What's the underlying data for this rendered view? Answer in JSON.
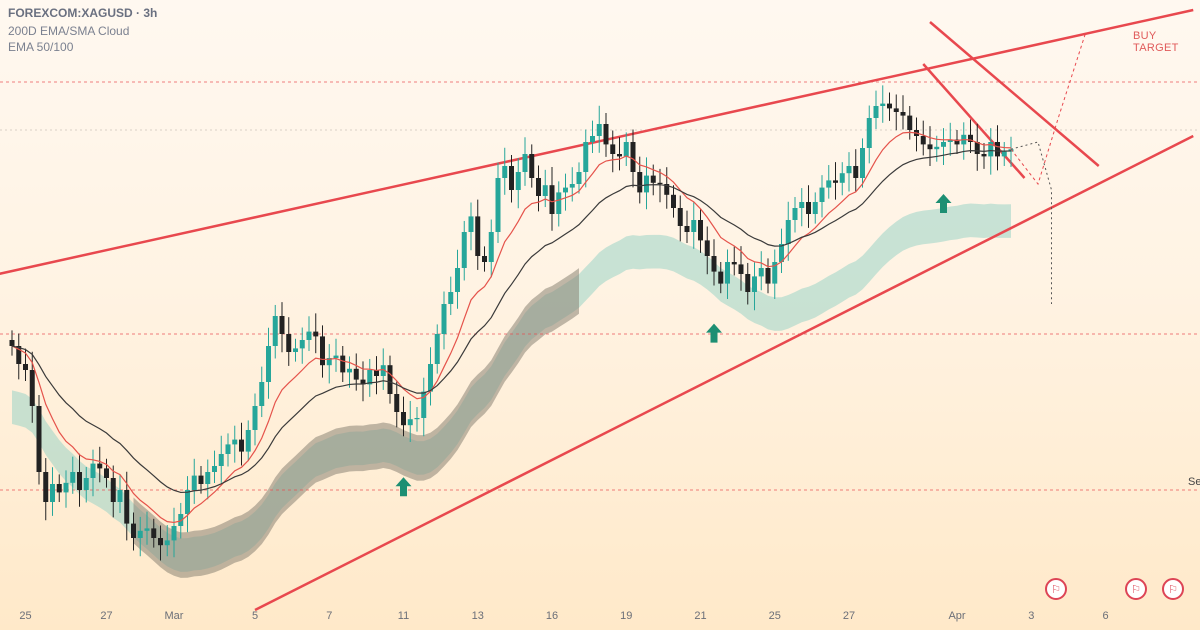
{
  "header": {
    "title": "FOREXCOM:XAGUSD · 3h",
    "indicator1": "200D EMA/SMA Cloud",
    "indicator2": "EMA 50/100"
  },
  "labels": {
    "buy_target": "BUY TARGET",
    "right_partial": "Se"
  },
  "x_ticks": [
    {
      "label": "25",
      "i": 2
    },
    {
      "label": "27",
      "i": 14
    },
    {
      "label": "Mar",
      "i": 24
    },
    {
      "label": "5",
      "i": 36
    },
    {
      "label": "7",
      "i": 47
    },
    {
      "label": "11",
      "i": 58
    },
    {
      "label": "13",
      "i": 69
    },
    {
      "label": "16",
      "i": 80
    },
    {
      "label": "19",
      "i": 91
    },
    {
      "label": "21",
      "i": 102
    },
    {
      "label": "25",
      "i": 113
    },
    {
      "label": "27",
      "i": 124
    },
    {
      "label": "Apr",
      "i": 140
    },
    {
      "label": "3",
      "i": 151
    },
    {
      "label": "6",
      "i": 162
    }
  ],
  "colors": {
    "up": "#26a69a",
    "down": "#222222",
    "ema_fast": "#e5534b",
    "ema_slow": "#3a3a3a",
    "cloud_lower": "#9bd4c6",
    "cloud_mid": "#8a8474",
    "trendline": "#e8484e",
    "arrow": "#1d8f73"
  },
  "chart_data": {
    "type": "candlestick",
    "symbol": "FOREXCOM:XAGUSD",
    "interval": "3h",
    "note_series": "price index values read from chart shape",
    "closes": [
      32.6,
      32.45,
      32.4,
      32.1,
      31.55,
      31.3,
      31.45,
      31.38,
      31.46,
      31.55,
      31.4,
      31.5,
      31.62,
      31.58,
      31.5,
      31.3,
      31.4,
      31.12,
      31.0,
      31.06,
      31.08,
      31.0,
      30.94,
      30.98,
      31.1,
      31.2,
      31.4,
      31.52,
      31.45,
      31.55,
      31.6,
      31.7,
      31.78,
      31.82,
      31.72,
      31.9,
      32.1,
      32.3,
      32.6,
      32.85,
      32.7,
      32.55,
      32.58,
      32.65,
      32.72,
      32.68,
      32.44,
      32.5,
      32.52,
      32.38,
      32.41,
      32.32,
      32.28,
      32.4,
      32.35,
      32.44,
      32.2,
      32.05,
      31.94,
      31.99,
      32.0,
      32.22,
      32.45,
      32.7,
      32.95,
      33.05,
      33.25,
      33.55,
      33.68,
      33.35,
      33.3,
      33.55,
      34.0,
      34.1,
      33.9,
      34.05,
      34.2,
      34.0,
      33.85,
      33.94,
      33.7,
      33.88,
      33.92,
      33.95,
      34.05,
      34.3,
      34.35,
      34.45,
      34.28,
      34.2,
      34.18,
      34.3,
      34.05,
      33.88,
      34.02,
      33.96,
      33.95,
      33.86,
      33.75,
      33.6,
      33.55,
      33.65,
      33.48,
      33.35,
      33.22,
      33.12,
      33.3,
      33.28,
      33.2,
      33.05,
      33.18,
      33.25,
      33.12,
      33.3,
      33.45,
      33.65,
      33.75,
      33.8,
      33.7,
      33.8,
      33.92,
      33.98,
      33.96,
      34.04,
      34.1,
      34.0,
      34.25,
      34.5,
      34.6,
      34.62,
      34.58,
      34.55,
      34.52,
      34.4,
      34.35,
      34.28,
      34.24,
      34.26,
      34.3,
      34.32,
      34.28,
      34.36,
      34.3,
      34.2,
      34.18,
      34.3,
      34.18,
      34.22,
      34.24
    ],
    "hlines": [
      34.8,
      32.7,
      31.4
    ],
    "arrows_at": [
      58,
      104,
      138
    ]
  }
}
